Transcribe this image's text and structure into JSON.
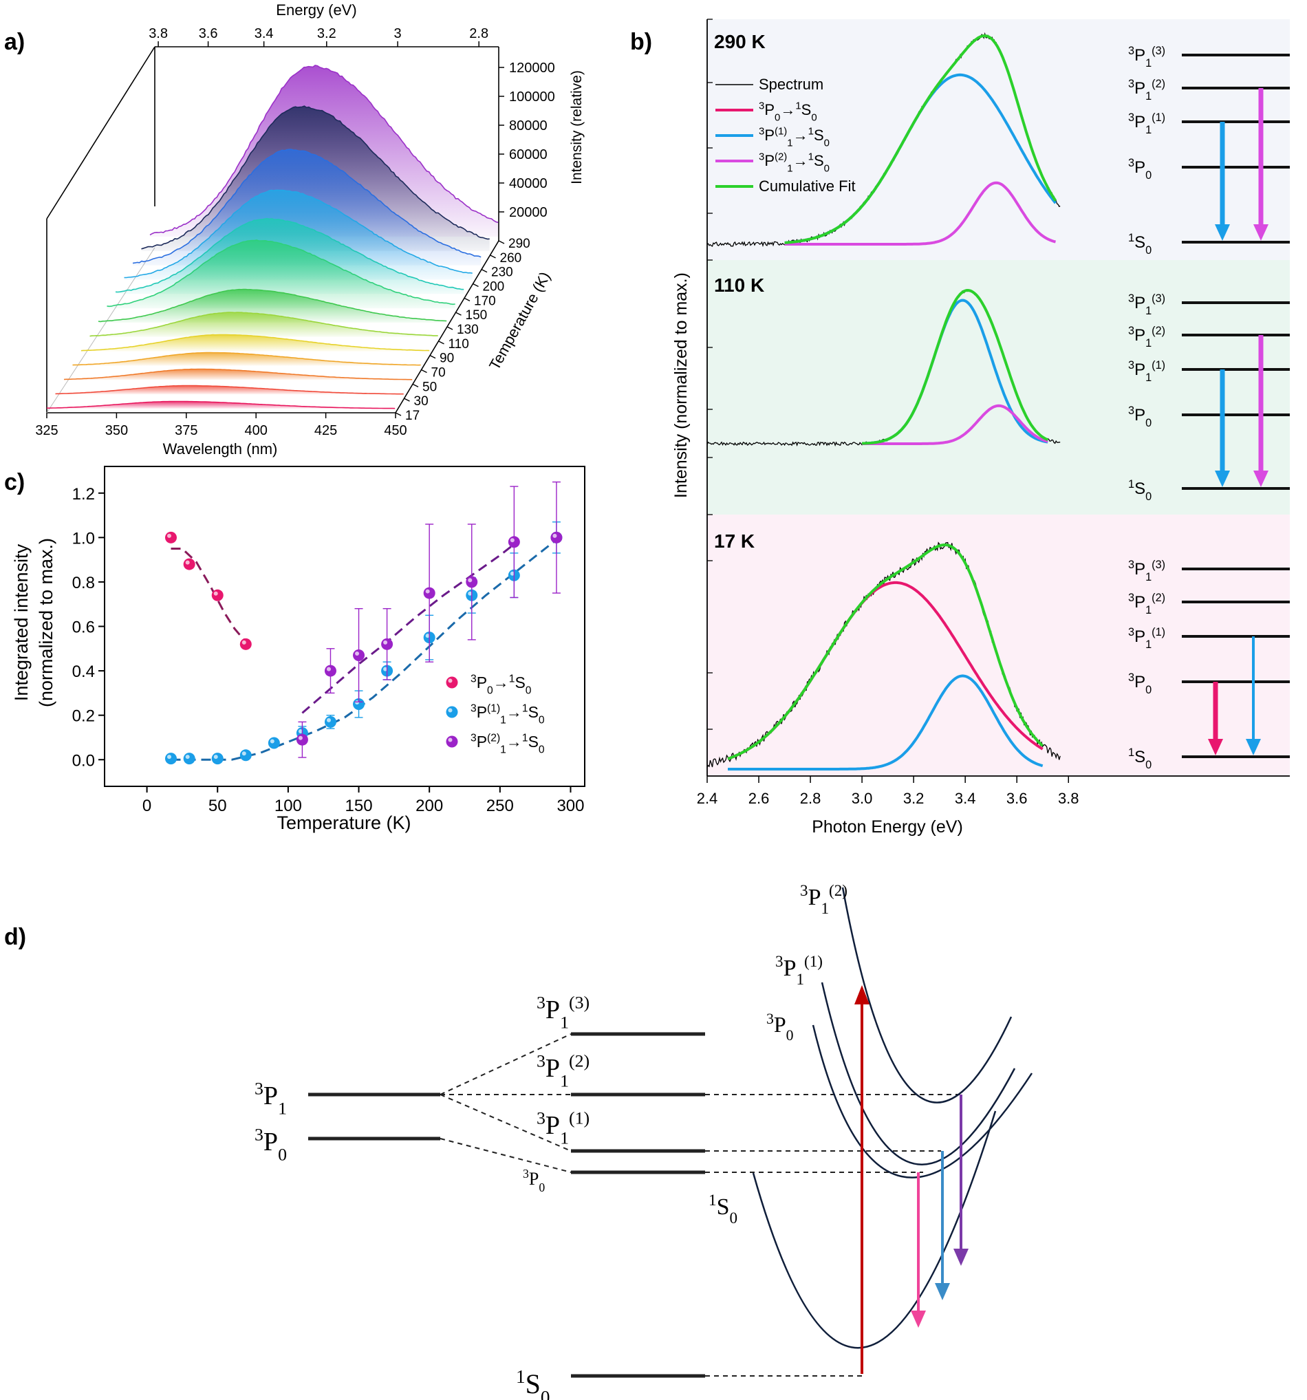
{
  "panel_labels": [
    "a)",
    "b)",
    "c)",
    "d)"
  ],
  "colors": {
    "s0": "#e8176e",
    "s1": "#1a9ee8",
    "s2": "#9b23c8",
    "s2_lines": "#d94ae0",
    "cum": "#2bd02b",
    "bg_290": "#f3f5fa",
    "bg_110": "#eaf6f0",
    "bg_17": "#fdf0f7",
    "arrow_excite": "#c00000",
    "arrow_s0": "#f0449a",
    "arrow_s1": "#3a8cc8",
    "arrow_s2": "#7b3aa8"
  },
  "chart_data": [
    {
      "panel": "a)",
      "type": "line",
      "title": "",
      "xlabel": "Wavelength (nm)",
      "x_ticks": [
        "325",
        "350",
        "375",
        "400",
        "425",
        "450"
      ],
      "x2label": "Energy (eV)",
      "x2_ticks": [
        "3.8",
        "3.6",
        "3.4",
        "3.2",
        "3",
        "2.8"
      ],
      "zlabel": "Intensity (relative)",
      "z_ticks": [
        "20000",
        "40000",
        "60000",
        "80000",
        "100000",
        "120000"
      ],
      "ylabel": "Temperature (K)",
      "temperatures": [
        "17",
        "30",
        "50",
        "70",
        "90",
        "110",
        "130",
        "150",
        "170",
        "200",
        "230",
        "260",
        "290"
      ],
      "series": [
        {
          "T": 17,
          "peak_nm": 371,
          "peak": 5000,
          "color": "#e8175d"
        },
        {
          "T": 30,
          "peak_nm": 372,
          "peak": 6000,
          "color": "#f04a3a"
        },
        {
          "T": 50,
          "peak_nm": 373,
          "peak": 7500,
          "color": "#f07a2a"
        },
        {
          "T": 70,
          "peak_nm": 374,
          "peak": 9000,
          "color": "#f0a628"
        },
        {
          "T": 90,
          "peak_nm": 375,
          "peak": 11500,
          "color": "#e6d22a"
        },
        {
          "T": 110,
          "peak_nm": 376,
          "peak": 17000,
          "color": "#9ad63a"
        },
        {
          "T": 130,
          "peak_nm": 377,
          "peak": 23000,
          "color": "#3ec84e"
        },
        {
          "T": 150,
          "peak_nm": 378,
          "peak": 47000,
          "color": "#2ed07a"
        },
        {
          "T": 170,
          "peak_nm": 379,
          "peak": 52000,
          "color": "#20c8b6"
        },
        {
          "T": 200,
          "peak_nm": 380,
          "peak": 62000,
          "color": "#22a8e6"
        },
        {
          "T": 230,
          "peak_nm": 381,
          "peak": 80000,
          "color": "#2a6ee0"
        },
        {
          "T": 260,
          "peak_nm": 382,
          "peak": 100000,
          "color": "#1c2a5a"
        },
        {
          "T": 290,
          "peak_nm": 383,
          "peak": 118000,
          "color": "#9b30c8"
        }
      ]
    },
    {
      "panel": "b)",
      "type": "line",
      "xlabel": "Photon Energy (eV)",
      "ylabel": "Intensity (normalized to max.)",
      "xlim": [
        2.4,
        3.85
      ],
      "x_ticks": [
        "2.4",
        "2.6",
        "2.8",
        "3.0",
        "3.2",
        "3.4",
        "3.6",
        "3.8"
      ],
      "legend": [
        "Spectrum",
        "³P₀→¹S₀",
        "³P⁽¹⁾₁→¹S₀",
        "³P⁽²⁾₁→¹S₀",
        "Cumulative Fit"
      ],
      "subpanels": [
        {
          "label": "290 K",
          "components": [
            {
              "name": "³P⁽¹⁾₁→¹S₀",
              "center": 3.38,
              "width": 0.22,
              "amp": 0.8
            },
            {
              "name": "³P⁽²⁾₁→¹S₀",
              "center": 3.52,
              "width": 0.09,
              "amp": 0.29
            }
          ],
          "fit_x": [
            2.7,
            3.75
          ],
          "spectrum_x": [
            2.4,
            3.77
          ]
        },
        {
          "label": "110 K",
          "components": [
            {
              "name": "³P⁽¹⁾₁→¹S₀",
              "center": 3.39,
              "width": 0.11,
              "amp": 0.68
            },
            {
              "name": "³P⁽²⁾₁→¹S₀",
              "center": 3.53,
              "width": 0.08,
              "amp": 0.18
            }
          ],
          "fit_x": [
            3.0,
            3.72
          ],
          "spectrum_x": [
            2.4,
            3.77
          ]
        },
        {
          "label": "17 K",
          "components": [
            {
              "name": "³P₀→¹S₀",
              "center": 3.13,
              "width": 0.27,
              "amp": 0.84
            },
            {
              "name": "³P⁽¹⁾₁→¹S₀",
              "center": 3.39,
              "width": 0.12,
              "amp": 0.42
            }
          ],
          "fit_x": [
            2.48,
            3.7
          ],
          "spectrum_x": [
            2.4,
            3.77
          ]
        }
      ],
      "levels": [
        "³P₁⁽³⁾",
        "³P₁⁽²⁾",
        "³P₁⁽¹⁾",
        "³P₀",
        "¹S₀"
      ]
    },
    {
      "panel": "c)",
      "type": "scatter",
      "xlabel": "Temperature (K)",
      "ylabel": [
        "Integrated intensity",
        "(normalized to max.)"
      ],
      "xlim": [
        -30,
        310
      ],
      "ylim": [
        -0.12,
        1.32
      ],
      "x_ticks": [
        0,
        50,
        100,
        150,
        200,
        250,
        300
      ],
      "y_ticks": [
        "0.0",
        "0.2",
        "0.4",
        "0.6",
        "0.8",
        "1.0",
        "1.2"
      ],
      "legend": [
        "³P₀→¹S₀",
        "³P⁽¹⁾₁→¹S₀",
        "³P⁽²⁾₁→¹S₀"
      ],
      "series": [
        {
          "name": "³P₀→¹S₀",
          "points": [
            [
              17,
              1.0
            ],
            [
              30,
              0.88
            ],
            [
              50,
              0.74
            ],
            [
              70,
              0.52
            ]
          ],
          "fit": [
            [
              17,
              0.95
            ],
            [
              25,
              0.95
            ],
            [
              35,
              0.89
            ],
            [
              45,
              0.78
            ],
            [
              55,
              0.66
            ],
            [
              62,
              0.59
            ],
            [
              70,
              0.53
            ]
          ]
        },
        {
          "name": "³P⁽¹⁾₁→¹S₀",
          "points": [
            [
              17,
              0.005
            ],
            [
              30,
              0.005
            ],
            [
              50,
              0.005
            ],
            [
              70,
              0.02
            ],
            [
              90,
              0.075
            ],
            [
              110,
              0.12
            ],
            [
              130,
              0.17
            ],
            [
              150,
              0.25
            ],
            [
              170,
              0.4
            ],
            [
              200,
              0.55
            ],
            [
              230,
              0.74
            ],
            [
              260,
              0.83
            ],
            [
              290,
              1.0
            ]
          ],
          "err": [
            0,
            0,
            0,
            0,
            0.01,
            0.03,
            0.03,
            0.06,
            0.04,
            0.1,
            0.08,
            0.1,
            0.07
          ],
          "fit": [
            [
              17,
              0.0
            ],
            [
              60,
              0.0
            ],
            [
              80,
              0.03
            ],
            [
              100,
              0.08
            ],
            [
              120,
              0.13
            ],
            [
              140,
              0.19
            ],
            [
              160,
              0.28
            ],
            [
              180,
              0.39
            ],
            [
              200,
              0.51
            ],
            [
              220,
              0.63
            ],
            [
              240,
              0.74
            ],
            [
              260,
              0.84
            ],
            [
              280,
              0.94
            ],
            [
              292,
              1.0
            ]
          ]
        },
        {
          "name": "³P⁽²⁾₁→¹S₀",
          "points": [
            [
              110,
              0.09
            ],
            [
              130,
              0.4
            ],
            [
              150,
              0.47
            ],
            [
              170,
              0.52
            ],
            [
              200,
              0.75
            ],
            [
              230,
              0.8
            ],
            [
              260,
              0.98
            ],
            [
              290,
              1.0
            ]
          ],
          "err": [
            0.08,
            0.1,
            0.21,
            0.16,
            0.31,
            0.26,
            0.25,
            0.25
          ],
          "fit": [
            [
              110,
              0.21
            ],
            [
              130,
              0.32
            ],
            [
              150,
              0.43
            ],
            [
              170,
              0.53
            ],
            [
              190,
              0.64
            ],
            [
              210,
              0.74
            ],
            [
              230,
              0.83
            ],
            [
              250,
              0.92
            ],
            [
              262,
              0.98
            ]
          ]
        }
      ]
    }
  ],
  "diagram_d": {
    "left_levels": [
      "³P₁",
      "³P₀"
    ],
    "split_levels": [
      "³P₁⁽³⁾",
      "³P₁⁽²⁾",
      "³P₁⁽¹⁾",
      "³P₀",
      "¹S₀"
    ],
    "curve_labels": [
      "³P₁⁽²⁾",
      "³P₁⁽¹⁾",
      "³P₀",
      "¹S₀"
    ]
  }
}
